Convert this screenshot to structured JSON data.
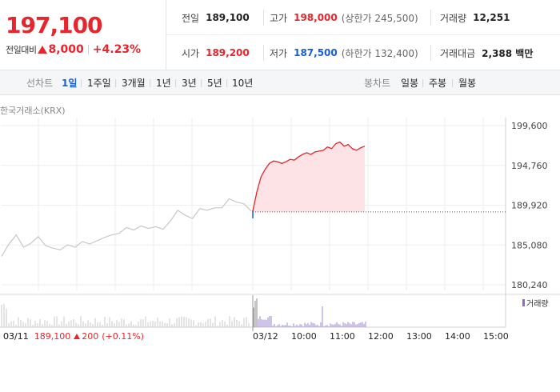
{
  "stock": {
    "current_price": "197,100",
    "change_label": "전일대비",
    "change_amount": "8,000",
    "change_percent": "+4.23%",
    "colors": {
      "up": "#e8242c",
      "down": "#1a5dd6"
    }
  },
  "info": {
    "prev_close": {
      "label": "전일",
      "value": "189,100"
    },
    "high": {
      "label": "고가",
      "value": "198,000",
      "limit": "(상한가 245,500)"
    },
    "volume": {
      "label": "거래량",
      "value": "12,251"
    },
    "open": {
      "label": "시가",
      "value": "189,200"
    },
    "low": {
      "label": "저가",
      "value": "187,500",
      "limit": "(하한가 132,400)"
    },
    "trade_amount": {
      "label": "거래대금",
      "value": "2,388 백만"
    }
  },
  "toolbar": {
    "line_label": "선차트",
    "line_periods": [
      "1일",
      "1주일",
      "3개월",
      "1년",
      "3년",
      "5년",
      "10년"
    ],
    "active_period": "1일",
    "candle_label": "봉차트",
    "candle_periods": [
      "일봉",
      "주봉",
      "월봉"
    ]
  },
  "chart": {
    "exchange": "한국거래소(KRX)",
    "y_ticks": [
      "199,600",
      "194,760",
      "189,920",
      "185,080",
      "180,240"
    ],
    "x_labels": [
      "03/11",
      "03/12",
      "10:00",
      "11:00",
      "12:00",
      "13:00",
      "14:00",
      "15:00"
    ],
    "volume_legend": "거래량"
  },
  "chart_data": {
    "type": "line",
    "ylim": [
      180240,
      199600
    ],
    "y_ticks": [
      199600,
      194760,
      189920,
      185080,
      180240
    ],
    "baseline": 189100,
    "series": [
      {
        "date": "03/11",
        "color": "#c8c8c8",
        "values": [
          183700,
          185200,
          186300,
          184800,
          185300,
          186100,
          185000,
          184700,
          184500,
          185100,
          184800,
          185500,
          185200,
          185600,
          186000,
          186300,
          186500,
          187200,
          186900,
          187400,
          187100,
          187300,
          187000,
          188000,
          189300,
          188700,
          188300,
          189500,
          189300,
          189600,
          189600,
          190700,
          190300,
          190100,
          189200
        ]
      },
      {
        "date": "03/12",
        "color": "#e8242c",
        "values": [
          189200,
          191600,
          193400,
          194300,
          195000,
          195300,
          195200,
          195000,
          195200,
          195500,
          195400,
          195800,
          196100,
          196300,
          196100,
          196400,
          196500,
          196600,
          197000,
          196800,
          197400,
          197600,
          197100,
          197300,
          196800,
          196600,
          196900,
          197100
        ]
      }
    ]
  },
  "footer": {
    "date": "03/11",
    "price": "189,100",
    "change": "200",
    "rate": "(+0.11%)"
  }
}
